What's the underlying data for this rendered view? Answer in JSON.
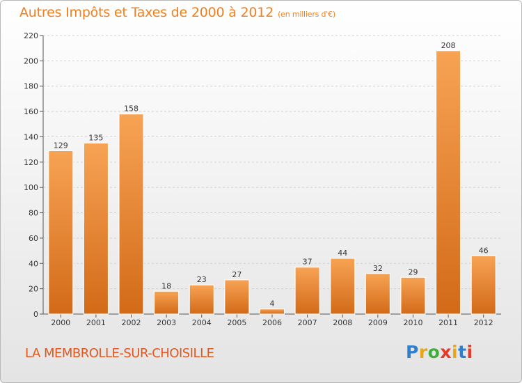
{
  "header": {
    "title": "Autres Impôts et Taxes de 2000 à 2012",
    "unit": "(en milliers d'€)"
  },
  "footer": {
    "commune": "LA MEMBROLLE-SUR-CHOISILLE",
    "logo_text": "Proxiti",
    "logo_colors": [
      "#2f7fd1",
      "#e8a516",
      "#3fae3c",
      "#e63a26",
      "#e8a516",
      "#2f7fd1",
      "#e63a26"
    ]
  },
  "colors": {
    "title": "#f07f1f",
    "bar_light": "#f7a354",
    "bar_dark": "#d26a18",
    "axis": "#555555",
    "grid": "#d0d0d0"
  },
  "chart_data": {
    "type": "bar",
    "categories": [
      "2000",
      "2001",
      "2002",
      "2003",
      "2004",
      "2005",
      "2006",
      "2007",
      "2008",
      "2009",
      "2010",
      "2011",
      "2012"
    ],
    "values": [
      129,
      135,
      158,
      18,
      23,
      27,
      4,
      37,
      44,
      32,
      29,
      208,
      46
    ],
    "ylim": [
      0,
      220
    ],
    "yticks": [
      0,
      20,
      40,
      60,
      80,
      100,
      120,
      140,
      160,
      180,
      200,
      220
    ],
    "grid": "horizontal dashed",
    "data_labels": true
  }
}
